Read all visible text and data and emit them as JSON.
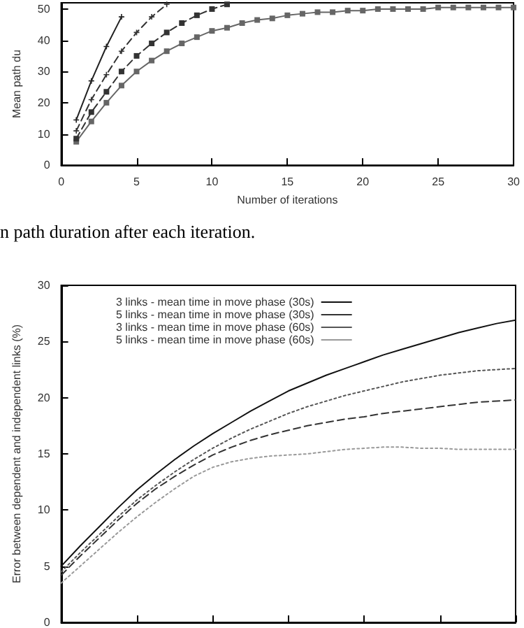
{
  "chart_data": [
    {
      "type": "line",
      "xlabel": "Number of iterations",
      "ylabel": "Mean path du",
      "annotations": [
        "n path duration after each iteration."
      ],
      "x": [
        1,
        2,
        3,
        4,
        5,
        6,
        7,
        8,
        9,
        10,
        11,
        12,
        13,
        14,
        15,
        16,
        17,
        18,
        19,
        20,
        21,
        22,
        23,
        24,
        25,
        26,
        27,
        28,
        29,
        30
      ],
      "xlim": [
        0,
        30
      ],
      "xticks": [
        0,
        5,
        10,
        15,
        20,
        25,
        30
      ],
      "ylim": [
        0,
        52
      ],
      "yticks": [
        0,
        10,
        20,
        30,
        40,
        50
      ],
      "grid": false,
      "legend": false,
      "series": [
        {
          "color": "#222222",
          "marker": "cross",
          "line_style": "solid",
          "values": [
            14.5,
            27,
            38,
            47.5,
            null,
            null,
            null,
            null,
            null,
            null,
            null,
            null,
            null,
            null,
            null,
            null,
            null,
            null,
            null,
            null,
            null,
            null,
            null,
            null,
            null,
            null,
            null,
            null,
            null,
            null
          ]
        },
        {
          "color": "#333333",
          "marker": "cross",
          "line_style": "dashed",
          "values": [
            11,
            21,
            29,
            36.5,
            42.5,
            47.5,
            51.5,
            null,
            null,
            null,
            null,
            null,
            null,
            null,
            null,
            null,
            null,
            null,
            null,
            null,
            null,
            null,
            null,
            null,
            null,
            null,
            null,
            null,
            null,
            null
          ]
        },
        {
          "color": "#333333",
          "marker": "square",
          "line_style": "dashed",
          "values": [
            8.5,
            17,
            23.5,
            30,
            35,
            39,
            42.5,
            45.5,
            48,
            50,
            51.5,
            null,
            null,
            null,
            null,
            null,
            null,
            null,
            null,
            null,
            null,
            null,
            null,
            null,
            null,
            null,
            null,
            null,
            null,
            null
          ]
        },
        {
          "color": "#666666",
          "marker": "square",
          "line_style": "solid",
          "values": [
            7.5,
            14,
            20,
            25.5,
            30,
            33.5,
            36.5,
            39,
            41,
            43,
            44,
            45.5,
            46.5,
            47,
            48,
            48.5,
            49,
            49,
            49.5,
            49.5,
            50,
            50,
            50,
            50,
            50.5,
            50.5,
            50.5,
            50.5,
            50.5,
            50.5
          ]
        }
      ]
    },
    {
      "type": "line",
      "ylabel": "Error between dependent and independent links (%)",
      "categories": [
        null,
        null,
        null,
        null,
        null,
        null,
        null,
        null,
        null,
        null,
        null,
        null,
        null,
        null,
        null,
        null,
        null,
        null,
        null,
        null,
        null,
        null,
        null,
        null,
        null
      ],
      "ylim": [
        0,
        30
      ],
      "yticks": [
        0,
        5,
        10,
        15,
        20,
        25,
        30
      ],
      "tick_labels": "y",
      "grid": false,
      "legend": "top left",
      "marker": "none",
      "series": [
        {
          "name": "3 links - mean time in move phase (30s)",
          "color": "#111111",
          "line_style": "solid",
          "values": [
            5,
            6.8,
            8.5,
            10.2,
            11.8,
            13.2,
            14.5,
            15.7,
            16.8,
            17.8,
            18.8,
            19.7,
            20.6,
            21.3,
            22.0,
            22.6,
            23.2,
            23.8,
            24.3,
            24.8,
            25.3,
            25.8,
            26.2,
            26.6,
            26.9
          ]
        },
        {
          "name": "5 links - mean time in move phase (30s)",
          "color": "#333333",
          "line_style": "dashed",
          "values": [
            4.2,
            5.9,
            7.5,
            9.1,
            10.6,
            11.9,
            13.0,
            14.0,
            14.9,
            15.6,
            16.2,
            16.7,
            17.1,
            17.5,
            17.8,
            18.1,
            18.3,
            18.6,
            18.8,
            19.0,
            19.2,
            19.4,
            19.6,
            19.7,
            19.8
          ]
        },
        {
          "name": "3 links - mean time in move phase (60s)",
          "color": "#555555",
          "line_style": "dotted",
          "values": [
            4.5,
            6.2,
            7.8,
            9.4,
            10.9,
            12.2,
            13.4,
            14.5,
            15.5,
            16.4,
            17.2,
            17.9,
            18.6,
            19.2,
            19.7,
            20.2,
            20.6,
            21.0,
            21.4,
            21.7,
            22.0,
            22.2,
            22.4,
            22.5,
            22.6
          ]
        },
        {
          "name": "5 links - mean time in move phase (60s)",
          "color": "#999999",
          "line_style": "dotted",
          "values": [
            3.5,
            5.0,
            6.5,
            8.0,
            9.4,
            10.7,
            11.9,
            13.0,
            13.8,
            14.3,
            14.6,
            14.8,
            14.9,
            15.0,
            15.2,
            15.4,
            15.5,
            15.6,
            15.6,
            15.5,
            15.5,
            15.4,
            15.4,
            15.4,
            15.4
          ]
        }
      ]
    }
  ]
}
